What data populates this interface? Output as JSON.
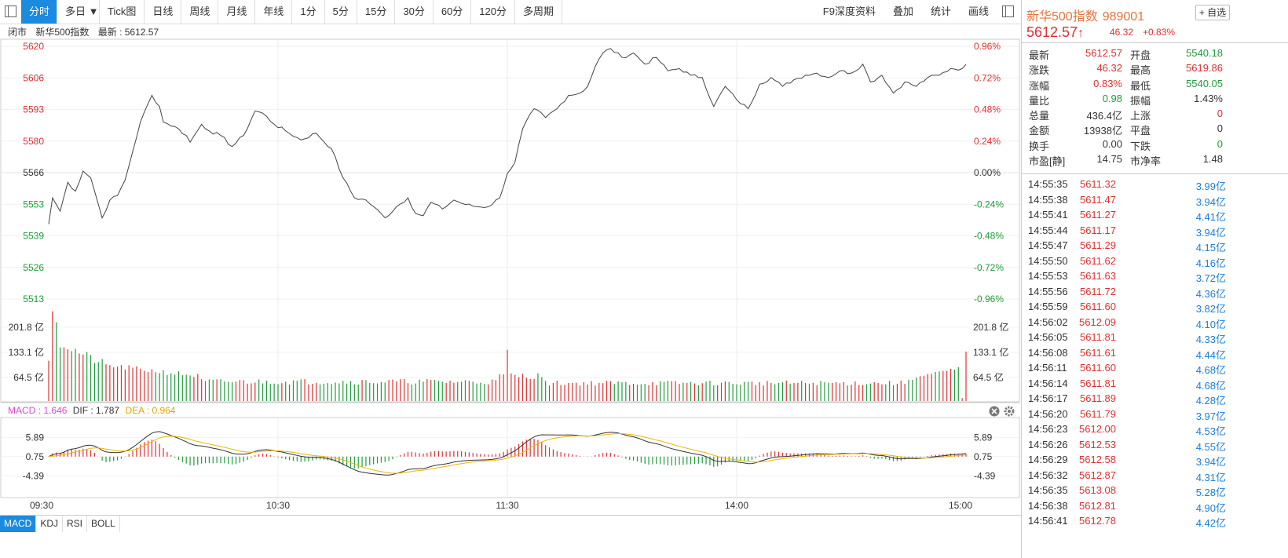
{
  "toolbar": {
    "tabs": [
      {
        "label": "分时",
        "active": true
      },
      {
        "label": "多日 ▼",
        "active": false
      },
      {
        "label": "Tick图",
        "active": false
      },
      {
        "label": "日线",
        "active": false
      },
      {
        "label": "周线",
        "active": false
      },
      {
        "label": "月线",
        "active": false
      },
      {
        "label": "年线",
        "active": false
      },
      {
        "label": "1分",
        "active": false
      },
      {
        "label": "5分",
        "active": false
      },
      {
        "label": "15分",
        "active": false
      },
      {
        "label": "30分",
        "active": false
      },
      {
        "label": "60分",
        "active": false
      },
      {
        "label": "120分",
        "active": false
      },
      {
        "label": "多周期",
        "active": false
      }
    ],
    "right_tools": [
      "F9深度资料",
      "叠加",
      "统计",
      "画线"
    ]
  },
  "info": {
    "status": "闭市",
    "name": "新华500指数",
    "latest_label": "最新 : 5612.57"
  },
  "side": {
    "name": "新华500指数",
    "code": "989001",
    "fav": "自选",
    "price": "5612.57",
    "arrow": "↑",
    "change": "46.32",
    "pct": "+0.83%",
    "stats": [
      {
        "k1": "最新",
        "v1": "5612.57",
        "c1": "up",
        "k2": "开盘",
        "v2": "5540.18",
        "c2": "dn"
      },
      {
        "k1": "涨跌",
        "v1": "46.32",
        "c1": "up",
        "k2": "最高",
        "v2": "5619.86",
        "c2": "up"
      },
      {
        "k1": "涨幅",
        "v1": "0.83%",
        "c1": "up",
        "k2": "最低",
        "v2": "5540.05",
        "c2": "dn"
      },
      {
        "k1": "量比",
        "v1": "0.98",
        "c1": "dn",
        "k2": "振幅",
        "v2": "1.43%",
        "c2": "flat"
      },
      {
        "k1": "总量",
        "v1": "436.4亿",
        "c1": "flat",
        "k2": "上涨",
        "v2": "0",
        "c2": "up"
      },
      {
        "k1": "金额",
        "v1": "13938亿",
        "c1": "flat",
        "k2": "平盘",
        "v2": "0",
        "c2": "flat"
      },
      {
        "k1": "换手",
        "v1": "0.00",
        "c1": "flat",
        "k2": "下跌",
        "v2": "0",
        "c2": "dn"
      },
      {
        "k1": "市盈[静]",
        "v1": "14.75",
        "c1": "flat",
        "k2": "市净率",
        "v2": "1.48",
        "c2": "flat"
      }
    ],
    "ticks": [
      {
        "t": "14:55:35",
        "p": "5611.32",
        "v": "3.99亿"
      },
      {
        "t": "14:55:38",
        "p": "5611.47",
        "v": "3.94亿"
      },
      {
        "t": "14:55:41",
        "p": "5611.27",
        "v": "4.41亿"
      },
      {
        "t": "14:55:44",
        "p": "5611.17",
        "v": "3.94亿"
      },
      {
        "t": "14:55:47",
        "p": "5611.29",
        "v": "4.15亿"
      },
      {
        "t": "14:55:50",
        "p": "5611.62",
        "v": "4.16亿"
      },
      {
        "t": "14:55:53",
        "p": "5611.63",
        "v": "3.72亿"
      },
      {
        "t": "14:55:56",
        "p": "5611.72",
        "v": "4.36亿"
      },
      {
        "t": "14:55:59",
        "p": "5611.60",
        "v": "3.82亿"
      },
      {
        "t": "14:56:02",
        "p": "5612.09",
        "v": "4.10亿"
      },
      {
        "t": "14:56:05",
        "p": "5611.81",
        "v": "4.33亿"
      },
      {
        "t": "14:56:08",
        "p": "5611.61",
        "v": "4.44亿"
      },
      {
        "t": "14:56:11",
        "p": "5611.60",
        "v": "4.68亿"
      },
      {
        "t": "14:56:14",
        "p": "5611.81",
        "v": "4.68亿"
      },
      {
        "t": "14:56:17",
        "p": "5611.89",
        "v": "4.28亿"
      },
      {
        "t": "14:56:20",
        "p": "5611.79",
        "v": "3.97亿"
      },
      {
        "t": "14:56:23",
        "p": "5612.00",
        "v": "4.53亿"
      },
      {
        "t": "14:56:26",
        "p": "5612.53",
        "v": "4.55亿"
      },
      {
        "t": "14:56:29",
        "p": "5612.58",
        "v": "3.94亿"
      },
      {
        "t": "14:56:32",
        "p": "5612.87",
        "v": "4.31亿"
      },
      {
        "t": "14:56:35",
        "p": "5613.08",
        "v": "5.28亿"
      },
      {
        "t": "14:56:38",
        "p": "5612.81",
        "v": "4.90亿"
      },
      {
        "t": "14:56:41",
        "p": "5612.78",
        "v": "4.42亿"
      }
    ]
  },
  "macd_header": {
    "macd": "MACD : 1.646",
    "dif": "DIF : 1.787",
    "dea": "DEA : 0.964"
  },
  "bottom_tabs": [
    {
      "label": "MACD",
      "active": true
    },
    {
      "label": "KDJ",
      "active": false
    },
    {
      "label": "RSI",
      "active": false
    },
    {
      "label": "BOLL",
      "active": false
    }
  ],
  "colors": {
    "up": "#e03030",
    "down": "#1f9d3a",
    "price_line": "#444444",
    "dea": "#f0b400",
    "dif": "#333333",
    "accent": "#1c8ae0"
  },
  "chart_data": {
    "type": "line",
    "price": {
      "prev_close": 5566.25,
      "ylim": [
        5506.6,
        5620
      ],
      "left_ticks": [
        "5620",
        "5606",
        "5593",
        "5580",
        "5566",
        "5553",
        "5539",
        "5526",
        "5513"
      ],
      "right_ticks": [
        "0.96%",
        "0.72%",
        "0.48%",
        "0.24%",
        "0.00%",
        "-0.24%",
        "-0.48%",
        "-0.72%",
        "-0.96%"
      ],
      "x_labels": [
        "09:30",
        "10:30",
        "11:30",
        "14:00",
        "15:00"
      ],
      "keypoints": [
        [
          0,
          5540.2
        ],
        [
          1,
          5552
        ],
        [
          3,
          5546
        ],
        [
          5,
          5559
        ],
        [
          7,
          5555
        ],
        [
          9,
          5564
        ],
        [
          11,
          5561
        ],
        [
          13,
          5549
        ],
        [
          14,
          5543
        ],
        [
          16,
          5551
        ],
        [
          18,
          5553
        ],
        [
          20,
          5560
        ],
        [
          22,
          5573
        ],
        [
          24,
          5586
        ],
        [
          27,
          5598
        ],
        [
          29,
          5593
        ],
        [
          30,
          5586
        ],
        [
          33,
          5584
        ],
        [
          36,
          5580
        ],
        [
          37,
          5577
        ],
        [
          40,
          5585
        ],
        [
          42,
          5582
        ],
        [
          45,
          5580
        ],
        [
          48,
          5575
        ],
        [
          51,
          5580
        ],
        [
          54,
          5591
        ],
        [
          56,
          5590
        ],
        [
          59,
          5585
        ],
        [
          62,
          5582
        ],
        [
          66,
          5578
        ],
        [
          70,
          5581
        ],
        [
          74,
          5574
        ],
        [
          77,
          5561
        ],
        [
          80,
          5552
        ],
        [
          83,
          5551
        ],
        [
          85,
          5548
        ],
        [
          88,
          5543
        ],
        [
          91,
          5548
        ],
        [
          94,
          5552
        ],
        [
          96,
          5545
        ],
        [
          98,
          5544
        ],
        [
          100,
          5550
        ],
        [
          103,
          5547
        ],
        [
          106,
          5551
        ],
        [
          109,
          5549
        ],
        [
          112,
          5548
        ],
        [
          115,
          5548
        ],
        [
          118,
          5552
        ],
        [
          120,
          5563
        ],
        [
          122,
          5568
        ],
        [
          124,
          5583
        ],
        [
          127,
          5592
        ],
        [
          130,
          5588
        ],
        [
          133,
          5592
        ],
        [
          136,
          5598
        ],
        [
          139,
          5599
        ],
        [
          141,
          5602
        ],
        [
          143,
          5611
        ],
        [
          145,
          5617
        ],
        [
          147,
          5619
        ],
        [
          150,
          5615
        ],
        [
          153,
          5617
        ],
        [
          156,
          5612
        ],
        [
          159,
          5615
        ],
        [
          162,
          5609
        ],
        [
          165,
          5610
        ],
        [
          168,
          5607
        ],
        [
          171,
          5606
        ],
        [
          174,
          5593
        ],
        [
          177,
          5602
        ],
        [
          180,
          5596
        ],
        [
          183,
          5592
        ],
        [
          186,
          5603
        ],
        [
          189,
          5606
        ],
        [
          192,
          5602
        ],
        [
          195,
          5605
        ],
        [
          198,
          5607
        ],
        [
          201,
          5608
        ],
        [
          204,
          5606
        ],
        [
          207,
          5609
        ],
        [
          210,
          5608
        ],
        [
          213,
          5612
        ],
        [
          215,
          5604
        ],
        [
          218,
          5607
        ],
        [
          221,
          5599
        ],
        [
          224,
          5604
        ],
        [
          227,
          5602
        ],
        [
          230,
          5606
        ],
        [
          233,
          5607
        ],
        [
          236,
          5610
        ],
        [
          239,
          5610
        ],
        [
          241,
          5612.57
        ]
      ],
      "n_minutes": 241
    },
    "volume": {
      "ylim": [
        0,
        255
      ],
      "ticks": [
        "201.8 亿",
        "133.1 亿",
        "64.5 亿"
      ],
      "tick_values": [
        201.8,
        133.1,
        64.5
      ]
    },
    "macd": {
      "ylim": [
        -10,
        11
      ],
      "ticks": [
        "5.89",
        "0.75",
        "-4.39"
      ],
      "tick_values": [
        5.89,
        0.75,
        -4.39
      ]
    }
  }
}
